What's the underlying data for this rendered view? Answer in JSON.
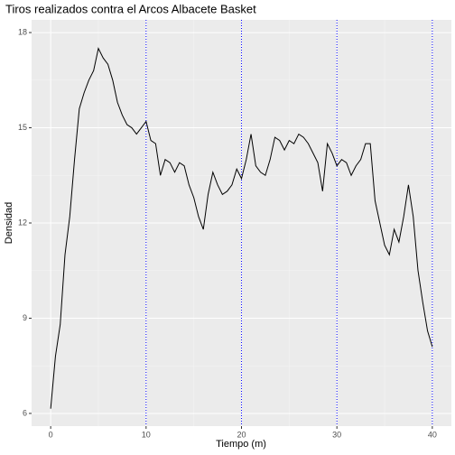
{
  "chart_data": {
    "type": "line",
    "title": "Tiros realizados contra el Arcos Albacete Basket",
    "x_label": "Tiempo (m)",
    "y_label": "Densidad",
    "x": [
      0,
      0.5,
      1,
      1.5,
      2,
      2.5,
      3,
      3.5,
      4,
      4.5,
      5,
      5.5,
      6,
      6.5,
      7,
      7.5,
      8,
      8.5,
      9,
      9.5,
      10,
      10.5,
      11,
      11.5,
      12,
      12.5,
      13,
      13.5,
      14,
      14.5,
      15,
      15.5,
      16,
      16.5,
      17,
      17.5,
      18,
      18.5,
      19,
      19.5,
      20,
      20.5,
      21,
      21.5,
      22,
      22.5,
      23,
      23.5,
      24,
      24.5,
      25,
      25.5,
      26,
      26.5,
      27,
      27.5,
      28,
      28.5,
      29,
      29.5,
      30,
      30.5,
      31,
      31.5,
      32,
      32.5,
      33,
      33.5,
      34,
      34.5,
      35,
      35.5,
      36,
      36.5,
      37,
      37.5,
      38,
      38.5,
      39,
      39.5,
      40
    ],
    "series": [
      {
        "name": "Densidad",
        "color": "#000000",
        "values": [
          6.15,
          7.8,
          8.8,
          11.0,
          12.2,
          14.0,
          15.6,
          16.1,
          16.5,
          16.8,
          17.5,
          17.2,
          17.0,
          16.5,
          15.8,
          15.4,
          15.1,
          15.0,
          14.8,
          15.0,
          15.2,
          14.6,
          14.5,
          13.5,
          14.0,
          13.9,
          13.6,
          13.9,
          13.8,
          13.2,
          12.8,
          12.2,
          11.8,
          12.9,
          13.6,
          13.2,
          12.9,
          13.0,
          13.2,
          13.7,
          13.4,
          14.0,
          14.8,
          13.8,
          13.6,
          13.5,
          14.0,
          14.7,
          14.6,
          14.3,
          14.6,
          14.5,
          14.8,
          14.7,
          14.5,
          14.2,
          13.9,
          13.0,
          14.5,
          14.2,
          13.8,
          14.0,
          13.9,
          13.5,
          13.8,
          14.0,
          14.5,
          14.5,
          12.7,
          12.0,
          11.3,
          11.0,
          11.8,
          11.4,
          12.2,
          13.2,
          12.2,
          10.5,
          9.5,
          8.6,
          8.1
        ]
      }
    ],
    "xlim": [
      -2,
      42
    ],
    "xticks": [
      0,
      10,
      20,
      30,
      40
    ],
    "ylim": [
      5.6,
      18.4
    ],
    "yticks": [
      6,
      9,
      12,
      15,
      18
    ],
    "grid": true,
    "vlines": [
      10,
      20,
      30,
      40
    ],
    "vline_color": "#0000ff"
  }
}
